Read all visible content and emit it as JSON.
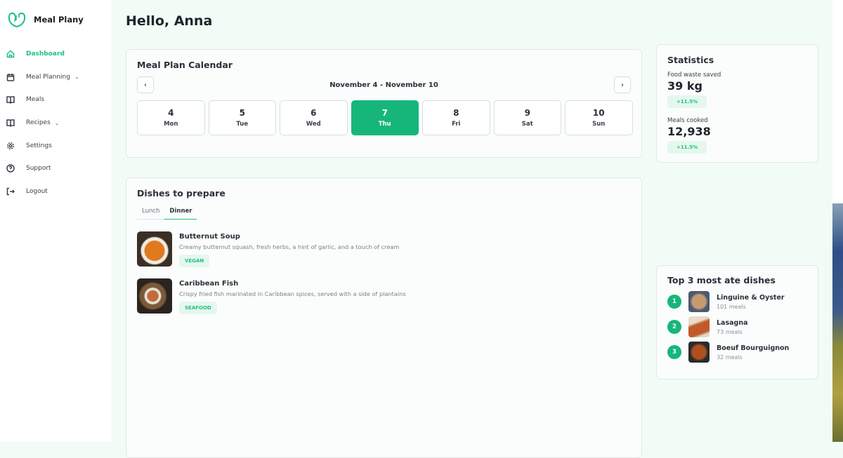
{
  "app": {
    "name": "Meal Plany",
    "brand_color": "#16b67a"
  },
  "sidebar": {
    "items": [
      {
        "label": "Dashboard",
        "icon": "home-icon",
        "active": true
      },
      {
        "label": "Meal Planning",
        "icon": "calendar-icon",
        "expandable": true
      },
      {
        "label": "Meals",
        "icon": "book-icon"
      },
      {
        "label": "Recipes",
        "icon": "book-icon",
        "expandable": true
      },
      {
        "label": "Settings",
        "icon": "gear-icon"
      },
      {
        "label": "Support",
        "icon": "help-icon"
      },
      {
        "label": "Logout",
        "icon": "logout-icon"
      }
    ]
  },
  "greeting": "Hello, Anna",
  "calendar": {
    "title": "Meal Plan Calendar",
    "range": "November 4 - November 10",
    "prev": "‹",
    "next": "›",
    "days": [
      {
        "n": "4",
        "w": "Mon"
      },
      {
        "n": "5",
        "w": "Tue"
      },
      {
        "n": "6",
        "w": "Wed"
      },
      {
        "n": "7",
        "w": "Thu",
        "selected": true
      },
      {
        "n": "8",
        "w": "Fri"
      },
      {
        "n": "9",
        "w": "Sat"
      },
      {
        "n": "10",
        "w": "Sun"
      }
    ]
  },
  "dishes": {
    "title": "Dishes to prepare",
    "tabs": [
      "Lunch",
      "Dinner"
    ],
    "active_tab": "Dinner",
    "items": [
      {
        "name": "Butternut Soup",
        "desc": "Creamy butternut squash, fresh herbs, a hint of garlic, and a touch of cream",
        "tag": "VEGAN"
      },
      {
        "name": "Caribbean Fish",
        "desc": "Crispy fried fish marinated in Caribbean spices, served with a side of plantains",
        "tag": "SEAFOOD"
      }
    ]
  },
  "stats": {
    "title": "Statistics",
    "items": [
      {
        "label": "Food waste saved",
        "value": "39 kg",
        "change": "+11.5%"
      },
      {
        "label": "Meals cooked",
        "value": "12,938",
        "change": "+11.5%"
      }
    ]
  },
  "top3": {
    "title": "Top 3 most ate dishes",
    "items": [
      {
        "rank": "1",
        "name": "Linguine & Oyster",
        "meals": "101 meals"
      },
      {
        "rank": "2",
        "name": "Lasagna",
        "meals": "73 meals"
      },
      {
        "rank": "3",
        "name": "Boeuf Bourguignon",
        "meals": "32 meals"
      }
    ]
  }
}
